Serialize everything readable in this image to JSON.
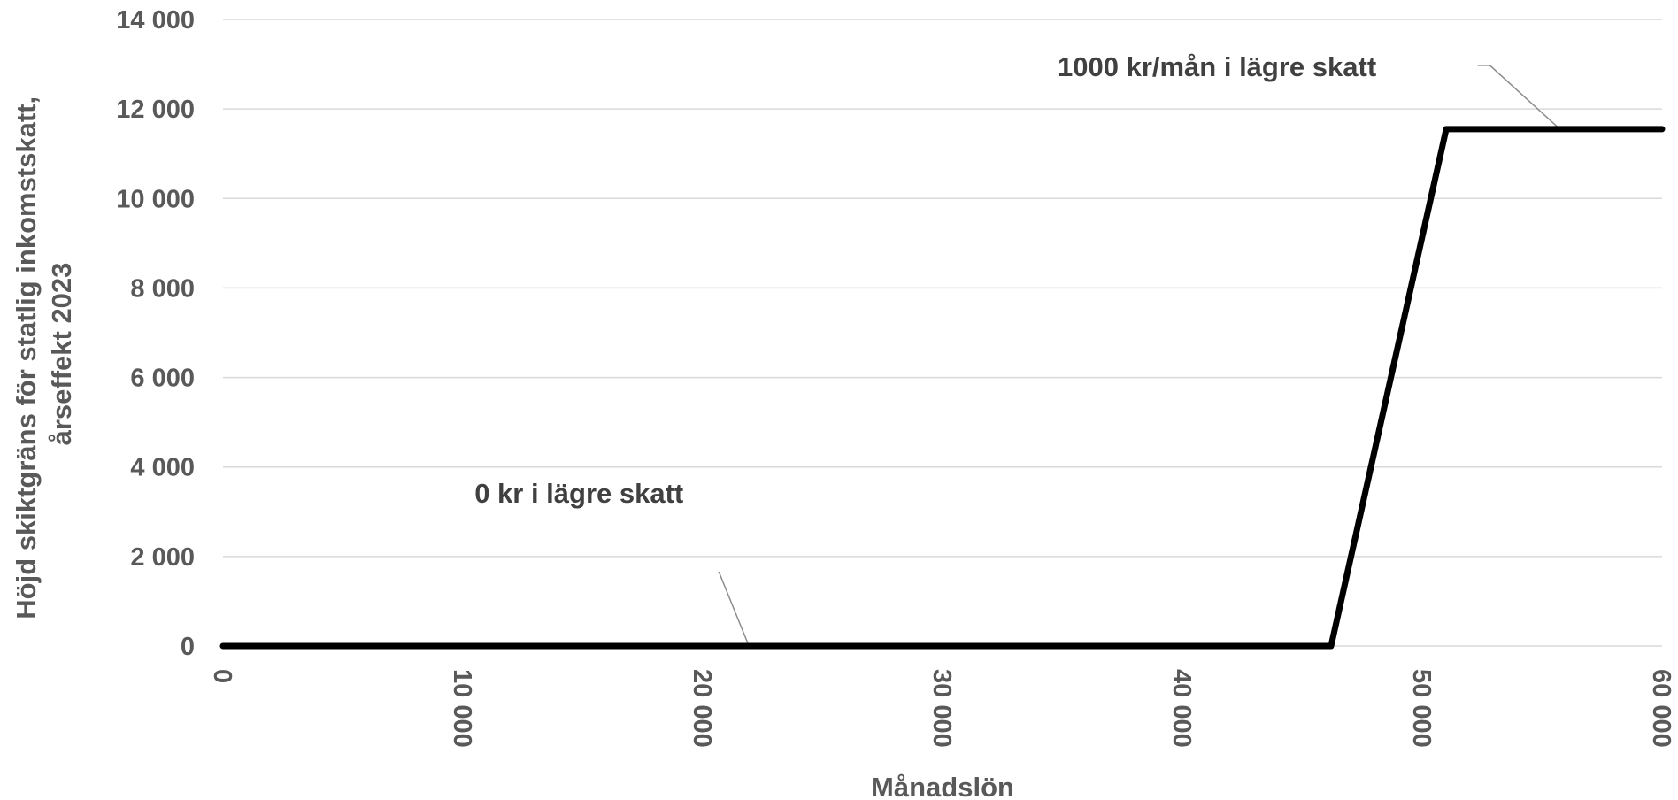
{
  "chart_data": {
    "type": "line",
    "title": "",
    "xlabel": "Månadslön",
    "ylabel_lines": [
      "Höjd skiktgräns för statlig inkomstskatt,",
      "årseffekt 2023"
    ],
    "xlim": [
      0,
      60000
    ],
    "ylim": [
      0,
      14000
    ],
    "x_ticks": [
      0,
      10000,
      20000,
      30000,
      40000,
      50000,
      60000
    ],
    "x_tick_labels": [
      "0",
      "10 000",
      "20 000",
      "30 000",
      "40 000",
      "50 000",
      "60 000"
    ],
    "y_ticks": [
      0,
      2000,
      4000,
      6000,
      8000,
      10000,
      12000,
      14000
    ],
    "y_tick_labels": [
      "0",
      "2 000",
      "4 000",
      "6 000",
      "8 000",
      "10 000",
      "12 000",
      "14 000"
    ],
    "grid": true,
    "legend": "none",
    "series": [
      {
        "x": [
          0,
          46200,
          51000,
          60000
        ],
        "y": [
          0,
          0,
          11550,
          11550
        ]
      }
    ],
    "annotations": [
      {
        "text": "0 kr i lägre skatt",
        "x": 22000,
        "y": 0
      },
      {
        "text": "1000 kr/mån i lägre skatt",
        "x": 55700,
        "y": 11550
      }
    ]
  }
}
